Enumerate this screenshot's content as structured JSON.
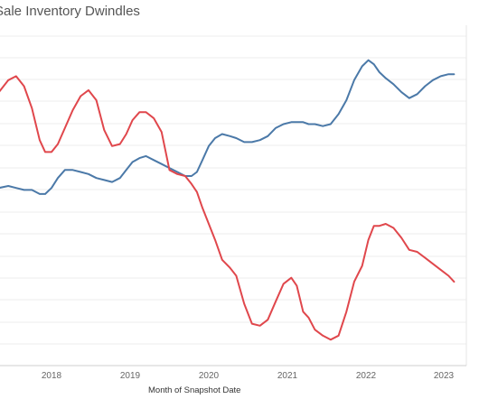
{
  "chart_data": {
    "type": "line",
    "title": "Sale Inventory Dwindles",
    "xlabel": "Month of Snapshot Date",
    "ylabel": "",
    "x_ticks": [
      "2018",
      "2019",
      "2020",
      "2021",
      "2022",
      "2023"
    ],
    "xlim": [
      2017.33,
      2023.5
    ],
    "ylim": [
      0,
      16.6
    ],
    "grid": true,
    "legend": "none",
    "series": [
      {
        "color": "#e0474c",
        "x": [
          2017.33,
          2017.45,
          2017.55,
          2017.65,
          2017.75,
          2017.85,
          2017.92,
          2018.0,
          2018.08,
          2018.17,
          2018.27,
          2018.37,
          2018.47,
          2018.57,
          2018.67,
          2018.77,
          2018.87,
          2018.95,
          2019.03,
          2019.12,
          2019.2,
          2019.3,
          2019.4,
          2019.5,
          2019.6,
          2019.7,
          2019.78,
          2019.85,
          2019.92,
          2020.0,
          2020.08,
          2020.17,
          2020.27,
          2020.35,
          2020.45,
          2020.55,
          2020.65,
          2020.75,
          2020.85,
          2020.95,
          2021.05,
          2021.12,
          2021.2,
          2021.27,
          2021.35,
          2021.45,
          2021.55,
          2021.65,
          2021.75,
          2021.85,
          2021.95,
          2022.03,
          2022.1,
          2022.17,
          2022.25,
          2022.35,
          2022.45,
          2022.55,
          2022.65,
          2022.75,
          2022.85,
          2022.95,
          2023.05,
          2023.12
        ],
        "values": [
          13.7,
          14.3,
          14.5,
          14.0,
          12.9,
          11.3,
          10.7,
          10.7,
          11.1,
          11.9,
          12.8,
          13.5,
          13.8,
          13.3,
          11.8,
          11.0,
          11.1,
          11.6,
          12.3,
          12.7,
          12.7,
          12.4,
          11.7,
          9.8,
          9.6,
          9.5,
          9.1,
          8.7,
          7.9,
          7.1,
          6.3,
          5.3,
          4.9,
          4.5,
          3.1,
          2.1,
          2.0,
          2.3,
          3.2,
          4.1,
          4.4,
          4.0,
          2.7,
          2.4,
          1.8,
          1.5,
          1.3,
          1.5,
          2.7,
          4.2,
          5.0,
          6.3,
          7.0,
          7.0,
          7.1,
          6.9,
          6.4,
          5.8,
          5.7,
          5.4,
          5.1,
          4.8,
          4.5,
          4.2
        ],
        "note_x_units": "years"
      }
    ]
  }
}
